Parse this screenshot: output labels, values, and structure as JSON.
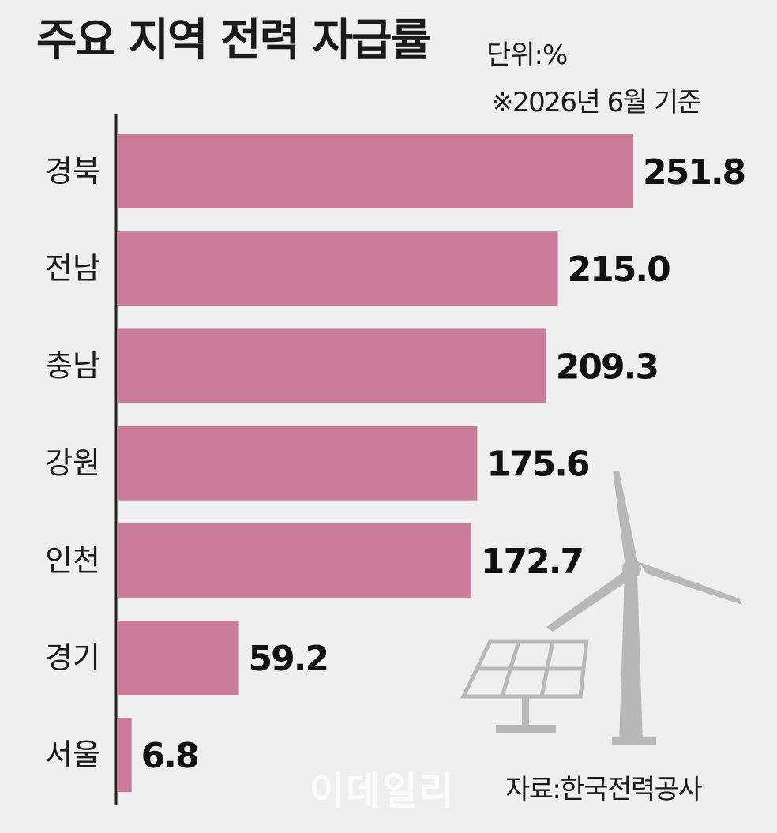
{
  "title": "주요 지역 전력 자급률",
  "unit": "단위:%",
  "basis": "※2026년 6월 기준",
  "source": "자료:한국전력공사",
  "watermark": "이데일리",
  "colors": {
    "bar": "#c97b99",
    "axis": "#222222",
    "illustration": "#b8b8b8"
  },
  "illustration": [
    "wind-turbine-icon",
    "solar-panel-icon"
  ],
  "chart_data": {
    "type": "bar",
    "orientation": "horizontal",
    "title": "주요 지역 전력 자급률",
    "categories": [
      "경북",
      "전남",
      "충남",
      "강원",
      "인천",
      "경기",
      "서울"
    ],
    "values": [
      251.8,
      215.0,
      209.3,
      175.6,
      172.7,
      59.2,
      6.8
    ],
    "value_labels": [
      "251.8",
      "215.0",
      "209.3",
      "175.6",
      "172.7",
      "59.2",
      "6.8"
    ],
    "xlim": [
      0,
      251.8
    ],
    "grid": false,
    "legend": "none"
  }
}
